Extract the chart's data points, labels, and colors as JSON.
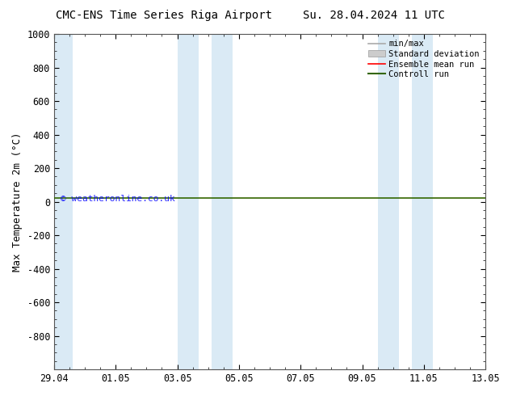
{
  "title_left": "CMC-ENS Time Series Riga Airport",
  "title_right": "Su. 28.04.2024 11 UTC",
  "ylabel": "Max Temperature 2m (°C)",
  "watermark": "© weatheronline.co.uk",
  "ylim_top": -1000,
  "ylim_bottom": 1000,
  "yticks": [
    -800,
    -600,
    -400,
    -200,
    0,
    200,
    400,
    600,
    800,
    1000
  ],
  "xlim_start": 0,
  "xlim_end": 14,
  "xtick_positions": [
    0,
    2,
    4,
    6,
    8,
    10,
    12,
    14
  ],
  "xtick_labels": [
    "29.04",
    "01.05",
    "03.05",
    "05.05",
    "07.05",
    "09.05",
    "11.05",
    "13.05"
  ],
  "green_line_y": 20,
  "shaded_regions": [
    [
      0,
      0.6
    ],
    [
      4.0,
      4.7
    ],
    [
      5.1,
      5.8
    ],
    [
      10.5,
      11.2
    ],
    [
      11.6,
      12.3
    ]
  ],
  "shade_color": "#daeaf5",
  "bg_color": "#ffffff",
  "plot_bg_color": "#ffffff",
  "green_color": "#336600",
  "red_color": "#ff0000",
  "legend_items": [
    "min/max",
    "Standard deviation",
    "Ensemble mean run",
    "Controll run"
  ],
  "title_fontsize": 10,
  "axis_fontsize": 9,
  "tick_fontsize": 8.5
}
